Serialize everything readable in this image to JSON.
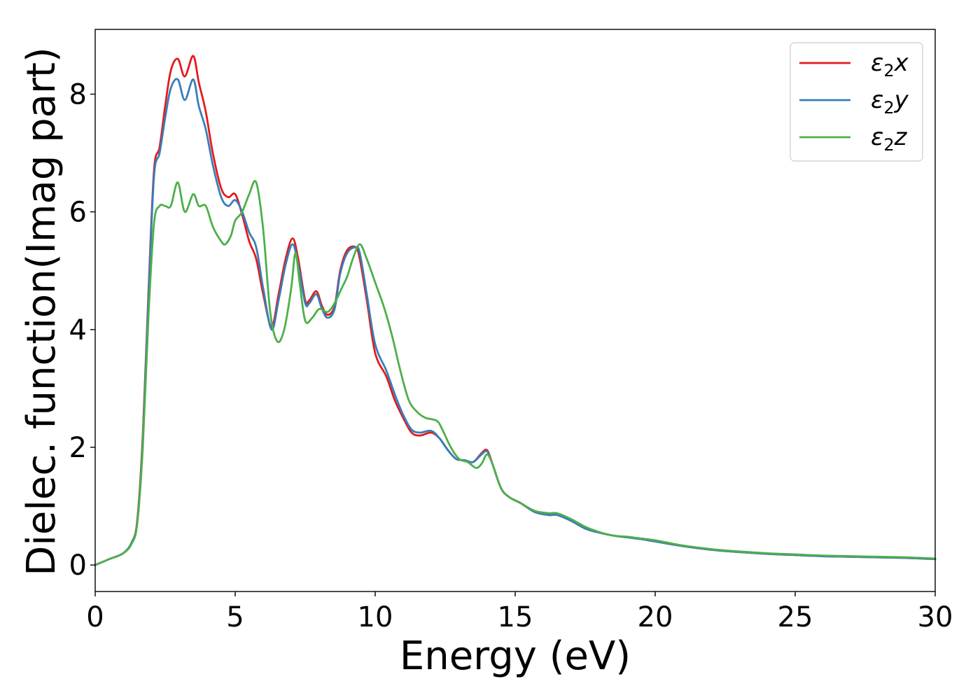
{
  "chart_data": {
    "type": "line",
    "title": "",
    "xlabel": "Energy (eV)",
    "ylabel": "Dielec. function(Imag part)",
    "xlim": [
      0,
      30
    ],
    "ylim": [
      -0.45,
      9.1
    ],
    "xticks": [
      0,
      5,
      10,
      15,
      20,
      25,
      30
    ],
    "yticks": [
      0,
      2,
      4,
      6,
      8
    ],
    "grid": false,
    "legend_position": "top-right",
    "series": [
      {
        "name_parts": [
          "ε",
          "2",
          "x"
        ],
        "color": "#e41a1c",
        "x": [
          0,
          0.5,
          1.0,
          1.3,
          1.5,
          1.7,
          1.9,
          2.1,
          2.3,
          2.5,
          2.7,
          2.95,
          3.2,
          3.5,
          3.7,
          3.95,
          4.2,
          4.5,
          4.75,
          5.0,
          5.25,
          5.5,
          5.75,
          6.0,
          6.3,
          6.55,
          6.8,
          7.05,
          7.25,
          7.5,
          7.65,
          7.9,
          8.1,
          8.3,
          8.55,
          8.75,
          9.0,
          9.3,
          9.45,
          9.7,
          10.0,
          10.4,
          10.7,
          11.0,
          11.3,
          11.6,
          12.0,
          12.3,
          12.6,
          12.9,
          13.2,
          13.5,
          13.8,
          14.0,
          14.2,
          14.5,
          14.8,
          15.2,
          15.7,
          16.2,
          16.5,
          17.0,
          17.5,
          18.0,
          18.5,
          19.0,
          19.5,
          20.0,
          21.0,
          22.0,
          23.0,
          24.0,
          25.0,
          26.0,
          27.0,
          28.0,
          29.0,
          30.0
        ],
        "y": [
          0.0,
          0.1,
          0.2,
          0.38,
          0.75,
          2.2,
          4.6,
          6.7,
          7.1,
          7.8,
          8.4,
          8.6,
          8.3,
          8.65,
          8.2,
          7.7,
          7.0,
          6.4,
          6.25,
          6.3,
          5.95,
          5.5,
          5.2,
          4.6,
          4.05,
          4.6,
          5.2,
          5.55,
          5.2,
          4.5,
          4.5,
          4.65,
          4.4,
          4.25,
          4.4,
          5.0,
          5.35,
          5.4,
          5.2,
          4.5,
          3.6,
          3.2,
          2.8,
          2.5,
          2.25,
          2.2,
          2.25,
          2.15,
          1.95,
          1.8,
          1.78,
          1.75,
          1.9,
          1.95,
          1.7,
          1.3,
          1.15,
          1.05,
          0.9,
          0.85,
          0.85,
          0.75,
          0.62,
          0.55,
          0.5,
          0.47,
          0.44,
          0.4,
          0.32,
          0.26,
          0.22,
          0.19,
          0.17,
          0.15,
          0.14,
          0.13,
          0.12,
          0.1
        ]
      },
      {
        "name_parts": [
          "ε",
          "2",
          "y"
        ],
        "color": "#377eb8",
        "x": [
          0,
          0.5,
          1.0,
          1.3,
          1.5,
          1.7,
          1.9,
          2.1,
          2.3,
          2.5,
          2.7,
          2.95,
          3.2,
          3.5,
          3.7,
          3.95,
          4.2,
          4.5,
          4.75,
          5.0,
          5.25,
          5.5,
          5.75,
          6.0,
          6.3,
          6.55,
          6.8,
          7.05,
          7.25,
          7.5,
          7.65,
          7.9,
          8.1,
          8.3,
          8.55,
          8.75,
          9.0,
          9.3,
          9.45,
          9.7,
          10.0,
          10.4,
          10.7,
          11.0,
          11.3,
          11.6,
          12.0,
          12.3,
          12.6,
          12.9,
          13.2,
          13.5,
          13.8,
          14.0,
          14.2,
          14.5,
          14.8,
          15.2,
          15.7,
          16.2,
          16.5,
          17.0,
          17.5,
          18.0,
          18.5,
          19.0,
          19.5,
          20.0,
          21.0,
          22.0,
          23.0,
          24.0,
          25.0,
          26.0,
          27.0,
          28.0,
          29.0,
          30.0
        ],
        "y": [
          0.0,
          0.1,
          0.2,
          0.38,
          0.72,
          2.1,
          4.5,
          6.6,
          7.0,
          7.6,
          8.1,
          8.25,
          7.9,
          8.25,
          7.8,
          7.4,
          6.8,
          6.25,
          6.1,
          6.2,
          6.0,
          5.65,
          5.4,
          4.7,
          4.0,
          4.5,
          5.1,
          5.45,
          5.1,
          4.45,
          4.45,
          4.6,
          4.35,
          4.2,
          4.35,
          4.95,
          5.3,
          5.4,
          5.3,
          4.6,
          3.75,
          3.3,
          2.9,
          2.55,
          2.3,
          2.25,
          2.28,
          2.15,
          1.95,
          1.8,
          1.78,
          1.75,
          1.88,
          1.93,
          1.7,
          1.3,
          1.15,
          1.05,
          0.9,
          0.85,
          0.85,
          0.75,
          0.62,
          0.55,
          0.5,
          0.47,
          0.44,
          0.4,
          0.32,
          0.26,
          0.22,
          0.19,
          0.17,
          0.15,
          0.14,
          0.13,
          0.12,
          0.1
        ]
      },
      {
        "name_parts": [
          "ε",
          "2",
          "z"
        ],
        "color": "#4daf4a",
        "x": [
          0,
          0.5,
          1.0,
          1.3,
          1.5,
          1.7,
          1.9,
          2.1,
          2.3,
          2.5,
          2.7,
          2.95,
          3.2,
          3.5,
          3.7,
          3.95,
          4.2,
          4.5,
          4.65,
          4.85,
          5.0,
          5.25,
          5.5,
          5.75,
          6.0,
          6.25,
          6.5,
          6.75,
          7.0,
          7.15,
          7.3,
          7.5,
          7.75,
          8.0,
          8.3,
          8.55,
          8.8,
          9.0,
          9.2,
          9.45,
          9.7,
          10.0,
          10.3,
          10.6,
          10.9,
          11.2,
          11.5,
          11.8,
          12.2,
          12.4,
          12.7,
          13.0,
          13.3,
          13.6,
          13.8,
          14.0,
          14.2,
          14.5,
          14.8,
          15.2,
          15.7,
          16.2,
          16.5,
          17.0,
          17.5,
          18.0,
          18.5,
          19.0,
          19.5,
          20.0,
          21.0,
          22.0,
          23.0,
          24.0,
          25.0,
          26.0,
          27.0,
          28.0,
          29.0,
          30.0
        ],
        "y": [
          0.0,
          0.1,
          0.2,
          0.36,
          0.7,
          2.0,
          4.2,
          5.8,
          6.1,
          6.1,
          6.1,
          6.5,
          6.0,
          6.3,
          6.1,
          6.1,
          5.75,
          5.5,
          5.45,
          5.6,
          5.85,
          6.0,
          6.3,
          6.5,
          5.7,
          4.3,
          3.8,
          4.0,
          4.7,
          5.3,
          4.8,
          4.15,
          4.2,
          4.35,
          4.3,
          4.45,
          4.7,
          4.9,
          5.2,
          5.45,
          5.2,
          4.8,
          4.4,
          3.9,
          3.3,
          2.8,
          2.6,
          2.5,
          2.45,
          2.3,
          2.0,
          1.8,
          1.75,
          1.65,
          1.72,
          1.88,
          1.7,
          1.3,
          1.15,
          1.05,
          0.92,
          0.88,
          0.88,
          0.78,
          0.65,
          0.56,
          0.5,
          0.48,
          0.45,
          0.42,
          0.33,
          0.27,
          0.23,
          0.2,
          0.18,
          0.16,
          0.15,
          0.14,
          0.13,
          0.11
        ]
      }
    ]
  }
}
